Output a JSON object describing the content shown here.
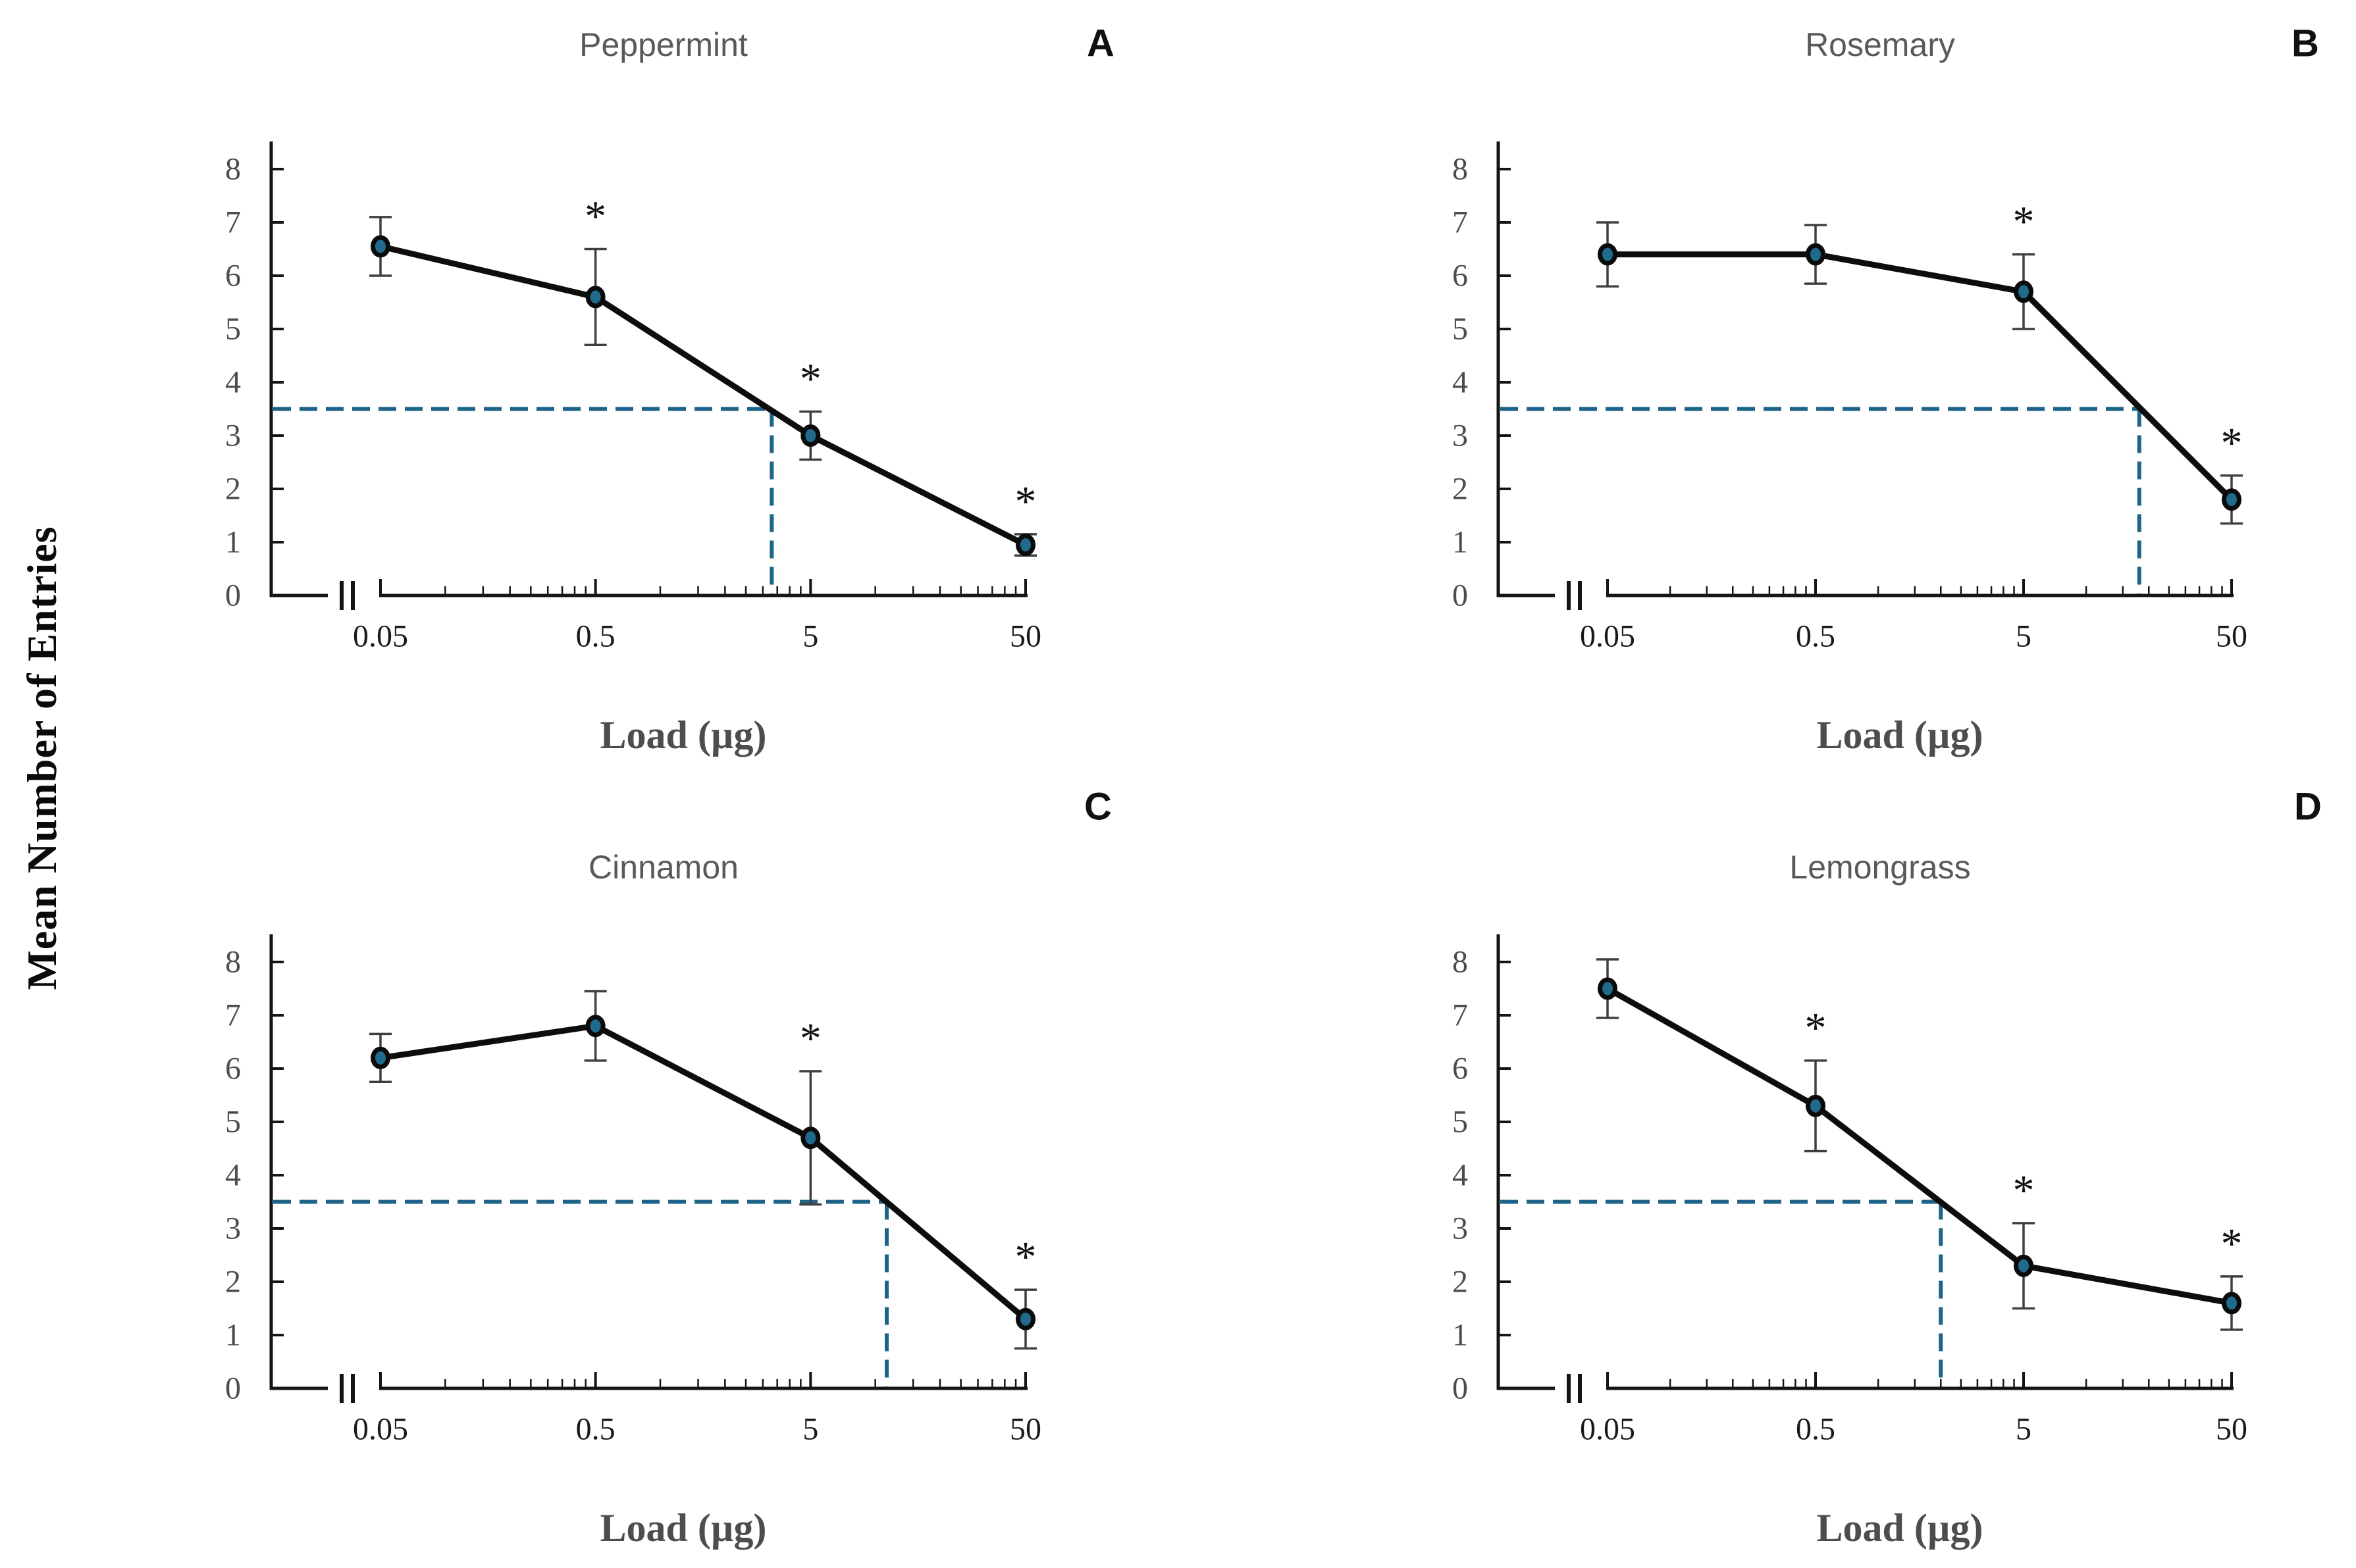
{
  "figure": {
    "ylabel_shared": "Mean Number of Entries",
    "xlabel": "Load (µg)",
    "significance_marker": "*",
    "colors": {
      "marker_fill": "#1F6A8D",
      "marker_stroke": "#0B0B0B",
      "crosshair": "#1E6389",
      "series_line": "#0D0D0D",
      "error_bar": "#3F3F3F",
      "axis": "#141414",
      "panel_title": "#595959",
      "y_tick_label": "#4D4D4D",
      "x_tick_label": "#1A1A1A",
      "x_axis_label": "#4D4D4D",
      "panel_letter": "#111111"
    }
  },
  "chart_data": [
    {
      "type": "line",
      "panel_letter": "A",
      "title": "Peppermint",
      "x_scale": "log",
      "x": [
        0.05,
        0.5,
        5,
        50
      ],
      "xtick_labels": [
        "0.05",
        "0.5",
        "5",
        "50"
      ],
      "xlabel": "Load (µg)",
      "ylabel": "Mean Number of Entries",
      "ylim": [
        0,
        8
      ],
      "ytick_step": 1,
      "y": [
        6.55,
        5.6,
        3.0,
        0.95
      ],
      "err": [
        0.55,
        0.9,
        0.45,
        0.2
      ],
      "significant_x": [
        0.5,
        5,
        50
      ],
      "crosshair": {
        "y": 3.5,
        "x": 3.3
      }
    },
    {
      "type": "line",
      "panel_letter": "B",
      "title": "Rosemary",
      "x_scale": "log",
      "x": [
        0.05,
        0.5,
        5,
        50
      ],
      "xtick_labels": [
        "0.05",
        "0.5",
        "5",
        "50"
      ],
      "xlabel": "Load (µg)",
      "ylabel": "Mean Number of Entries",
      "ylim": [
        0,
        8
      ],
      "ytick_step": 1,
      "y": [
        6.4,
        6.4,
        5.7,
        1.8
      ],
      "err": [
        0.6,
        0.55,
        0.7,
        0.45
      ],
      "significant_x": [
        5,
        50
      ],
      "crosshair": {
        "y": 3.5,
        "x": 18
      }
    },
    {
      "type": "line",
      "panel_letter": "C",
      "title": "Cinnamon",
      "x_scale": "log",
      "x": [
        0.05,
        0.5,
        5,
        50
      ],
      "xtick_labels": [
        "0.05",
        "0.5",
        "5",
        "50"
      ],
      "xlabel": "Load (µg)",
      "ylabel": "Mean Number of Entries",
      "ylim": [
        0,
        8
      ],
      "ytick_step": 1,
      "y": [
        6.2,
        6.8,
        4.7,
        1.3
      ],
      "err": [
        0.45,
        0.65,
        1.25,
        0.55
      ],
      "significant_x": [
        5,
        50
      ],
      "crosshair": {
        "y": 3.5,
        "x": 11.3
      }
    },
    {
      "type": "line",
      "panel_letter": "D",
      "title": "Lemongrass",
      "x_scale": "log",
      "x": [
        0.05,
        0.5,
        5,
        50
      ],
      "xtick_labels": [
        "0.05",
        "0.5",
        "5",
        "50"
      ],
      "xlabel": "Load (µg)",
      "ylabel": "Mean Number of Entries",
      "ylim": [
        0,
        8
      ],
      "ytick_step": 1,
      "y": [
        7.5,
        5.3,
        2.3,
        1.6
      ],
      "err": [
        0.55,
        0.85,
        0.8,
        0.5
      ],
      "significant_x": [
        0.5,
        5,
        50
      ],
      "crosshair": {
        "y": 3.5,
        "x": 2.0
      }
    }
  ]
}
